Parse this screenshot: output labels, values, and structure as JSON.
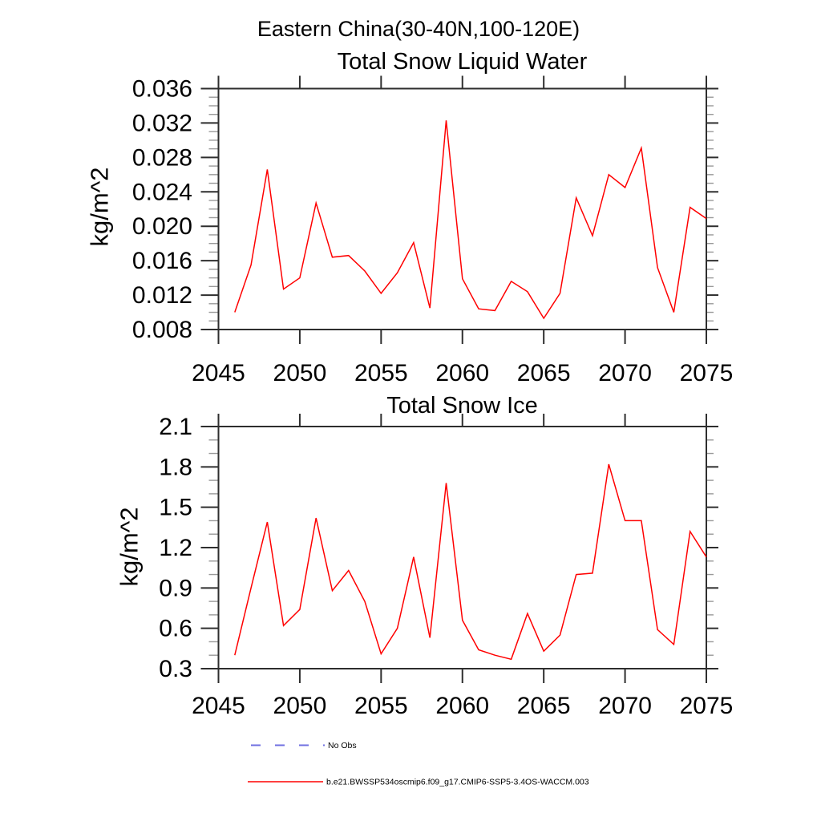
{
  "header": {
    "title": "Eastern China(30-40N,100-120E)"
  },
  "legend": {
    "items": [
      {
        "label": "No Obs",
        "color": "#6f6fe0",
        "style": "dashed"
      },
      {
        "label": "b.e21.BWSSP534oscmip6.f09_g17.CMIP6-SSP5-3.4OS-WACCM.003",
        "color": "#ff0000",
        "style": "solid"
      }
    ]
  },
  "colors": {
    "axis": "#2e2e2e",
    "minor_tick": "#999999",
    "series": "#ff0000"
  },
  "chart_data": [
    {
      "type": "line",
      "title": "Total Snow Liquid Water",
      "xlabel": "",
      "ylabel": "kg/m^2",
      "xlim": [
        2045,
        2075
      ],
      "ylim": [
        0.008,
        0.036
      ],
      "grid": false,
      "legend_position": "bottom",
      "x_ticks": [
        2045,
        2050,
        2055,
        2060,
        2065,
        2070,
        2075
      ],
      "x_tick_labels": [
        "2045",
        "2050",
        "2055",
        "2060",
        "2065",
        "2070",
        "2075"
      ],
      "y_ticks": [
        0.008,
        0.012,
        0.016,
        0.02,
        0.024,
        0.028,
        0.032,
        0.036
      ],
      "y_tick_labels": [
        "0.008",
        "0.012",
        "0.016",
        "0.020",
        "0.024",
        "0.028",
        "0.032",
        "0.036"
      ],
      "y_minor_step": 0.001,
      "series": [
        {
          "name": "b.e21.BWSSP534oscmip6.f09_g17.CMIP6-SSP5-3.4OS-WACCM.003",
          "color": "#ff0000",
          "x": [
            2046,
            2047,
            2048,
            2049,
            2050,
            2051,
            2052,
            2053,
            2054,
            2055,
            2056,
            2057,
            2058,
            2059,
            2060,
            2061,
            2062,
            2063,
            2064,
            2065,
            2066,
            2067,
            2068,
            2069,
            2070,
            2071,
            2072,
            2073,
            2074,
            2075
          ],
          "y": [
            0.01,
            0.0155,
            0.0266,
            0.0127,
            0.014,
            0.0227,
            0.0164,
            0.0166,
            0.0148,
            0.0122,
            0.0146,
            0.0181,
            0.0105,
            0.0323,
            0.0139,
            0.0104,
            0.0102,
            0.0136,
            0.0124,
            0.0093,
            0.0122,
            0.0233,
            0.0189,
            0.026,
            0.0245,
            0.0291,
            0.0152,
            0.01,
            0.0222,
            0.0209
          ]
        }
      ]
    },
    {
      "type": "line",
      "title": "Total Snow Ice",
      "xlabel": "",
      "ylabel": "kg/m^2",
      "xlim": [
        2045,
        2075
      ],
      "ylim": [
        0.3,
        2.1
      ],
      "grid": false,
      "legend_position": "bottom",
      "x_ticks": [
        2045,
        2050,
        2055,
        2060,
        2065,
        2070,
        2075
      ],
      "x_tick_labels": [
        "2045",
        "2050",
        "2055",
        "2060",
        "2065",
        "2070",
        "2075"
      ],
      "y_ticks": [
        0.3,
        0.6,
        0.9,
        1.2,
        1.5,
        1.8,
        2.1
      ],
      "y_tick_labels": [
        "0.3",
        "0.6",
        "0.9",
        "1.2",
        "1.5",
        "1.8",
        "2.1"
      ],
      "y_minor_step": 0.1,
      "series": [
        {
          "name": "b.e21.BWSSP534oscmip6.f09_g17.CMIP6-SSP5-3.4OS-WACCM.003",
          "color": "#ff0000",
          "x": [
            2046,
            2047,
            2048,
            2049,
            2050,
            2051,
            2052,
            2053,
            2054,
            2055,
            2056,
            2057,
            2058,
            2059,
            2060,
            2061,
            2062,
            2063,
            2064,
            2065,
            2066,
            2067,
            2068,
            2069,
            2070,
            2071,
            2072,
            2073,
            2074,
            2075
          ],
          "y": [
            0.4,
            0.9,
            1.39,
            0.62,
            0.74,
            1.42,
            0.88,
            1.03,
            0.8,
            0.41,
            0.6,
            1.13,
            0.53,
            1.68,
            0.66,
            0.44,
            0.4,
            0.37,
            0.71,
            0.43,
            0.55,
            1.0,
            1.01,
            1.82,
            1.4,
            1.4,
            0.59,
            0.48,
            1.32,
            1.13
          ]
        }
      ]
    }
  ]
}
